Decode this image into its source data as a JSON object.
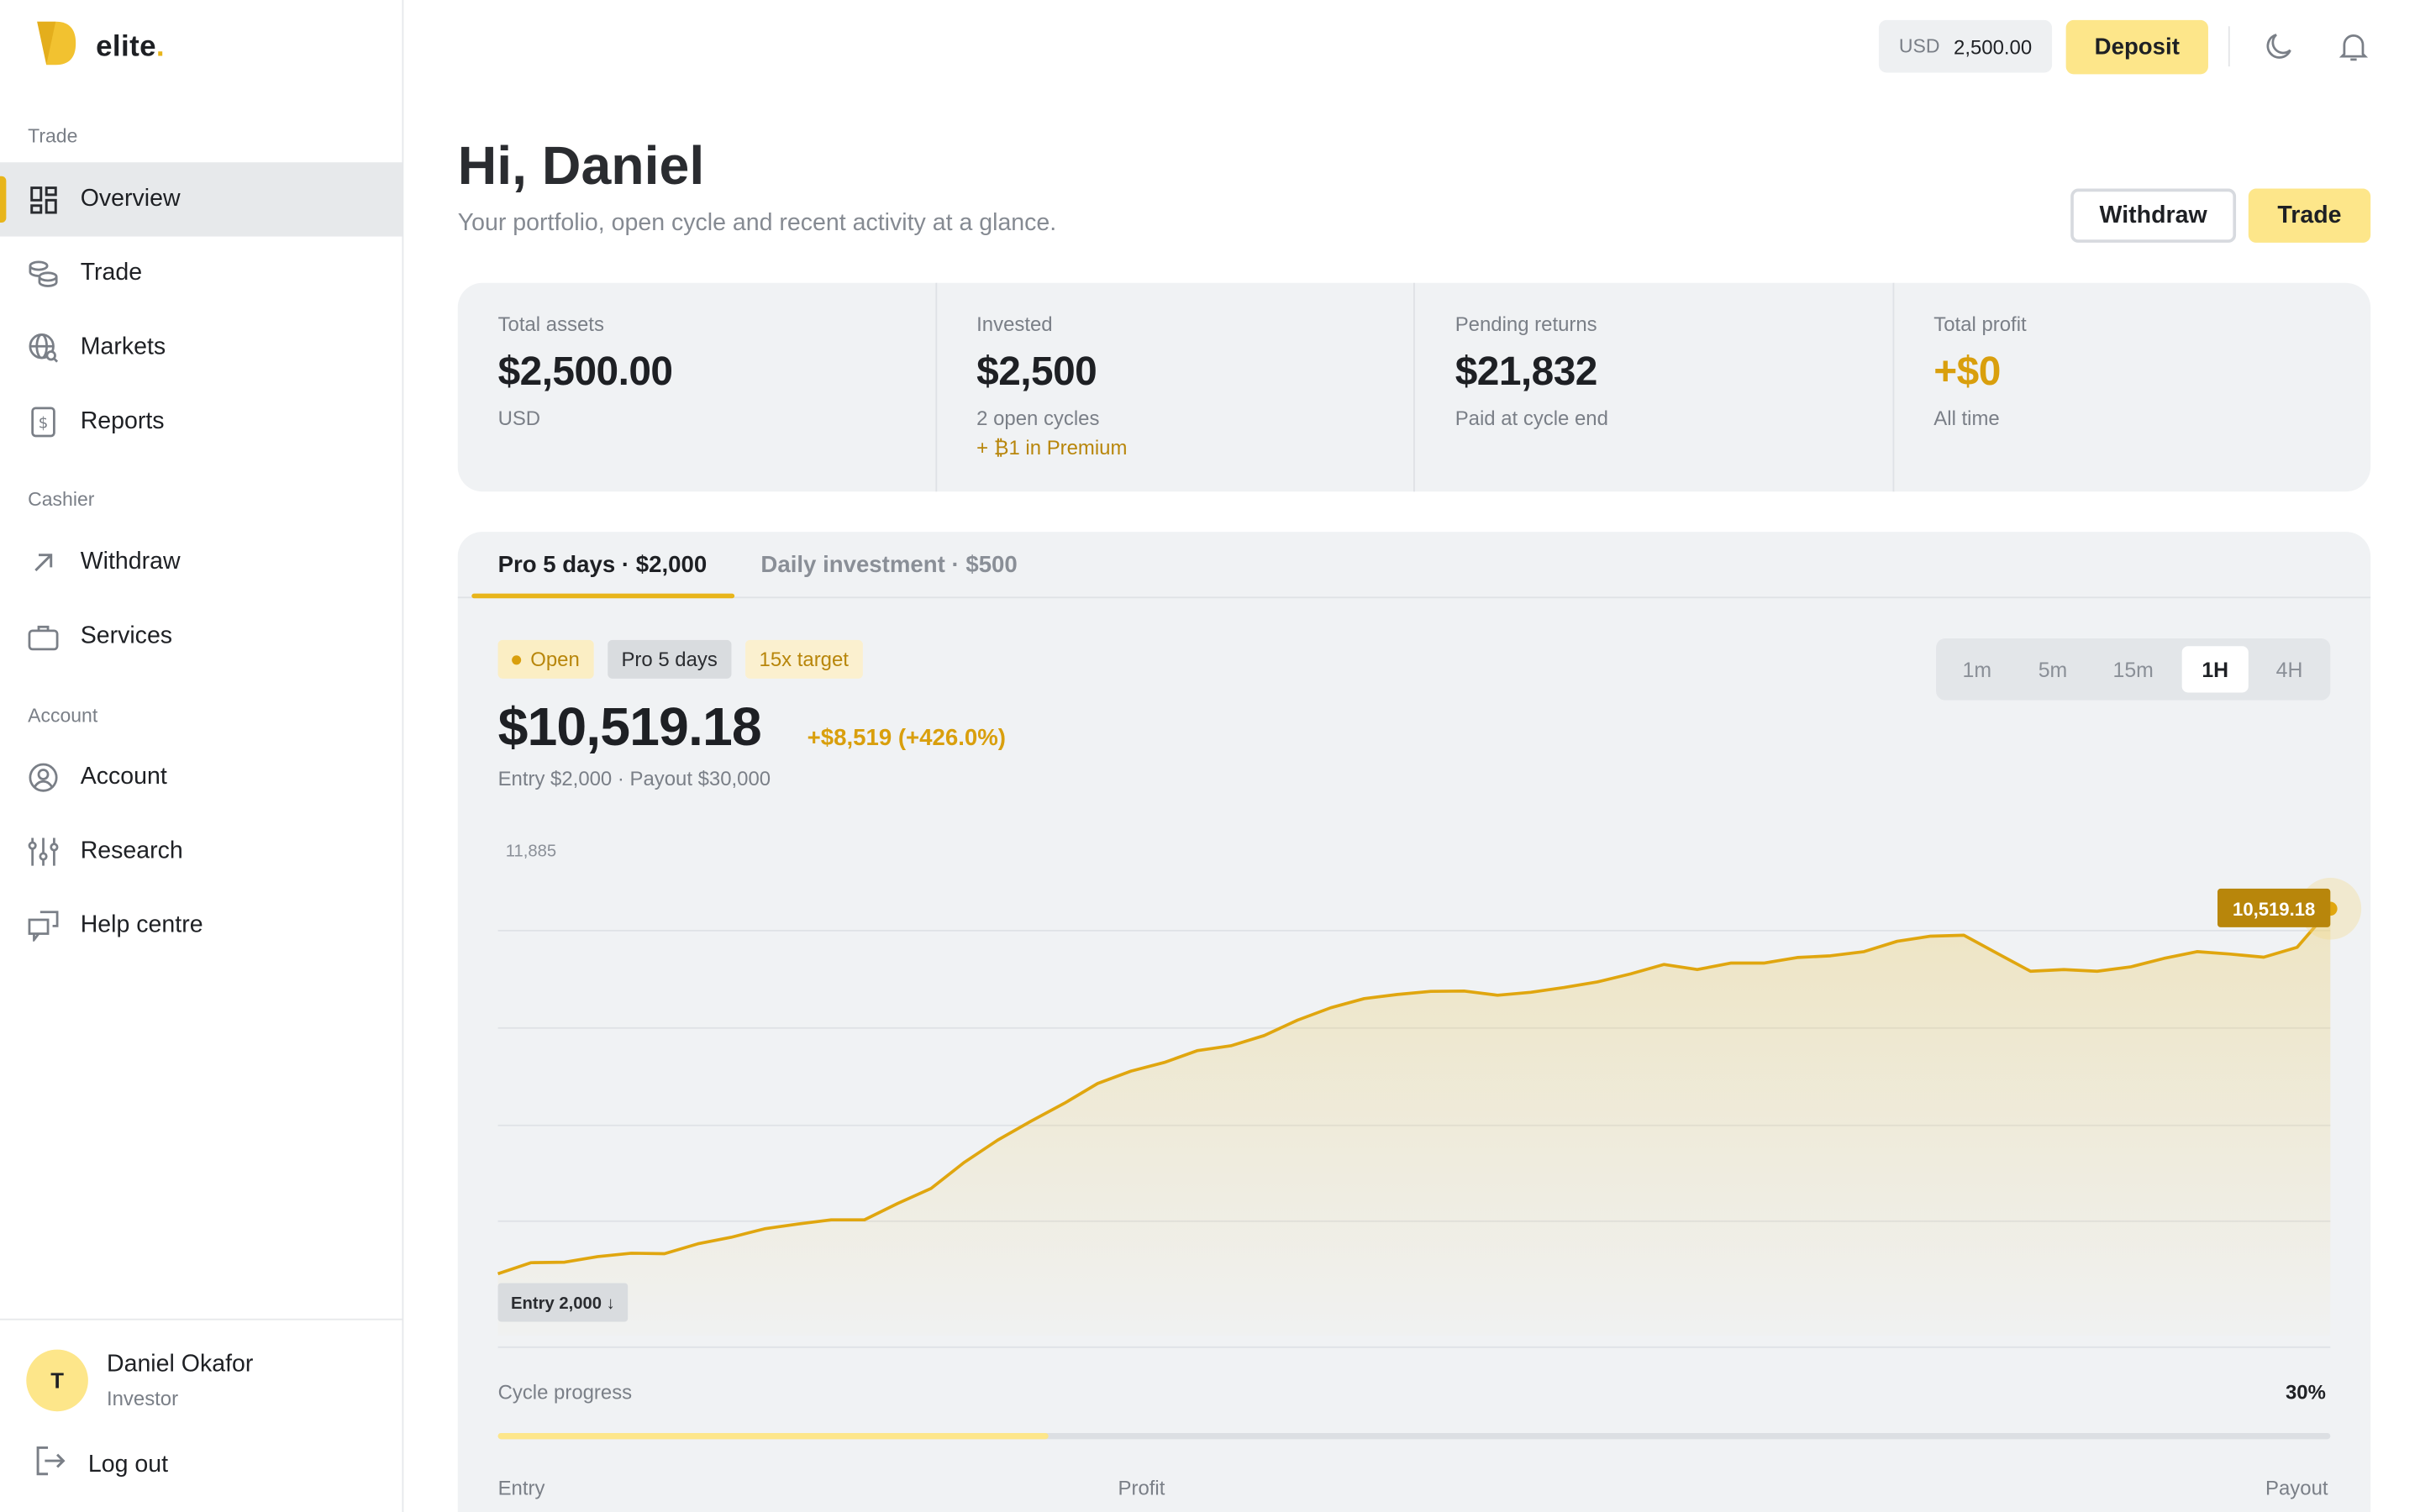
{
  "brand": {
    "name": "elite",
    "dot": "."
  },
  "sidebar": {
    "sections": {
      "trade": "Trade",
      "cashier": "Cashier",
      "account": "Account"
    },
    "items": [
      {
        "label": "Overview",
        "icon": "grid-icon"
      },
      {
        "label": "Trade",
        "icon": "coins-icon"
      },
      {
        "label": "Markets",
        "icon": "globe-search-icon"
      },
      {
        "label": "Reports",
        "icon": "receipt-icon"
      },
      {
        "label": "Withdraw",
        "icon": "arrow-up-right-icon"
      },
      {
        "label": "Services",
        "icon": "briefcase-icon"
      },
      {
        "label": "Account",
        "icon": "user-circle-icon"
      },
      {
        "label": "Research",
        "icon": "sliders-icon"
      },
      {
        "label": "Help centre",
        "icon": "chat-icon"
      }
    ],
    "user": {
      "initial": "T",
      "name": "Daniel Okafor",
      "role": "Investor"
    },
    "logout": "Log out"
  },
  "topbar": {
    "currency": "USD",
    "balance": "2,500.00",
    "deposit": "Deposit"
  },
  "header": {
    "greeting": "Hi, Daniel",
    "subtitle": "Your portfolio, open cycle and recent activity at a glance.",
    "withdraw": "Withdraw",
    "trade": "Trade"
  },
  "stats": [
    {
      "label": "Total assets",
      "value": "$2,500.00",
      "sub": "USD",
      "sub2": ""
    },
    {
      "label": "Invested",
      "value": "$2,500",
      "sub": "2 open cycles",
      "sub2": "+ ₿1 in Premium"
    },
    {
      "label": "Pending returns",
      "value": "$21,832",
      "sub": "Paid at cycle end",
      "sub2": ""
    },
    {
      "label": "Total profit",
      "value": "+$0",
      "sub": "All time",
      "sub2": ""
    }
  ],
  "panel": {
    "tabs": [
      "Pro 5 days · $2,000",
      "Daily investment · $500"
    ],
    "badges": {
      "open": "Open",
      "plan": "Pro 5 days",
      "target": "15x target"
    },
    "value": "$10,519.18",
    "change": "+$8,519 (+426.0%)",
    "entry_line": "Entry $2,000 · Payout $30,000",
    "timeframes": [
      "1m",
      "5m",
      "15m",
      "1H",
      "4H"
    ],
    "active_timeframe": "1H",
    "progress_label": "Cycle progress",
    "progress_pct": "30%",
    "progress_value": 0.3,
    "footer": {
      "entry": "Entry",
      "profit": "Profit",
      "payout": "Payout"
    }
  },
  "chart_data": {
    "type": "area",
    "y_label_top": "11,885",
    "entry_marker": "Entry 2,000 ↓",
    "last_label": "10,519.18",
    "color": "#e0a60f",
    "values": [
      2000,
      2260,
      2270,
      2400,
      2480,
      2470,
      2700,
      2850,
      3050,
      3160,
      3260,
      3260,
      3640,
      3990,
      4600,
      5120,
      5560,
      5980,
      6440,
      6730,
      6930,
      7210,
      7320,
      7560,
      7920,
      8210,
      8420,
      8520,
      8590,
      8600,
      8500,
      8570,
      8680,
      8810,
      9000,
      9220,
      9100,
      9250,
      9250,
      9380,
      9420,
      9520,
      9760,
      9880,
      9900,
      9480,
      9060,
      9100,
      9060,
      9160,
      9360,
      9520,
      9460,
      9390,
      9620,
      10519.18
    ]
  }
}
